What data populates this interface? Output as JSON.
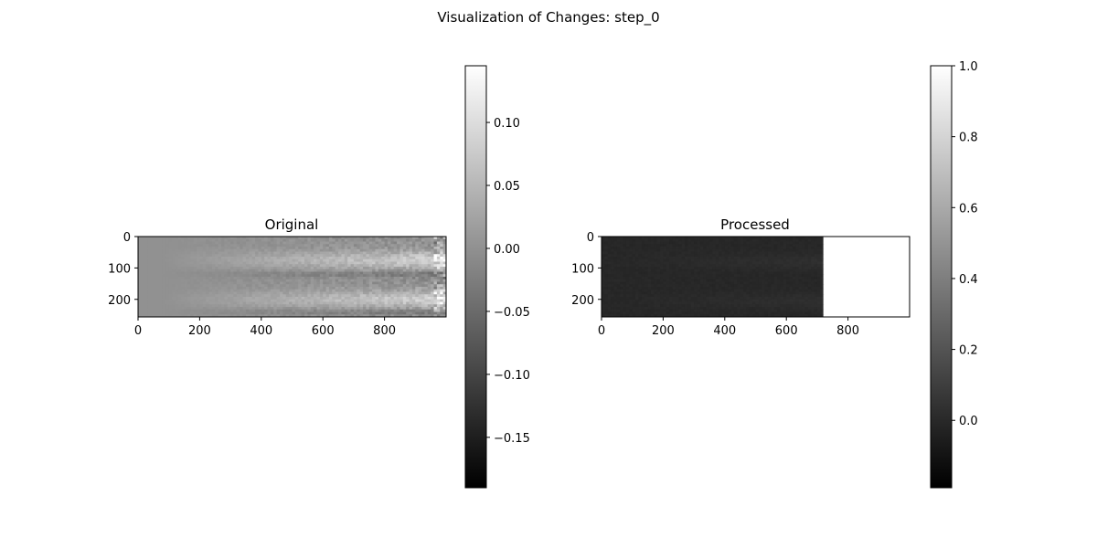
{
  "figure": {
    "suptitle": "Visualization of Changes: step_0"
  },
  "chart_data": [
    {
      "type": "heatmap",
      "title": "Original",
      "xlabel": "",
      "ylabel": "",
      "xlim": [
        0,
        1000
      ],
      "ylim": [
        256,
        0
      ],
      "xticks": [
        0,
        200,
        400,
        600,
        800
      ],
      "xtick_labels": [
        "0",
        "200",
        "400",
        "600",
        "800"
      ],
      "yticks": [
        0,
        100,
        200
      ],
      "ytick_labels": [
        "0",
        "100",
        "200"
      ],
      "colormap": "gray",
      "colorbar": {
        "range": [
          -0.19,
          0.145
        ],
        "ticks": [
          -0.15,
          -0.1,
          -0.05,
          0.0,
          0.05,
          0.1
        ],
        "tick_labels": [
          "−0.15",
          "−0.10",
          "−0.05",
          "0.00",
          "0.05",
          "0.10"
        ]
      },
      "pattern": {
        "base_level": 0.0,
        "bright_bands_rows": [
          75,
          200
        ],
        "dark_band_rows": [
          120,
          240
        ],
        "extreme_right_value": 0.12
      }
    },
    {
      "type": "heatmap",
      "title": "Processed",
      "xlabel": "",
      "ylabel": "",
      "xlim": [
        0,
        1000
      ],
      "ylim": [
        256,
        0
      ],
      "xticks": [
        0,
        200,
        400,
        600,
        800
      ],
      "xtick_labels": [
        "0",
        "200",
        "400",
        "600",
        "800"
      ],
      "yticks": [
        0,
        100,
        200
      ],
      "ytick_labels": [
        "0",
        "100",
        "200"
      ],
      "colormap": "gray",
      "colorbar": {
        "range": [
          -0.19,
          1.0
        ],
        "ticks": [
          0.0,
          0.2,
          0.4,
          0.6,
          0.8,
          1.0
        ],
        "tick_labels": [
          "0.0",
          "0.2",
          "0.4",
          "0.6",
          "0.8",
          "1.0"
        ]
      },
      "pattern": {
        "data_until_x": 720,
        "padding_value": 1.0,
        "data_value_range": [
          -0.05,
          0.04
        ]
      }
    }
  ]
}
